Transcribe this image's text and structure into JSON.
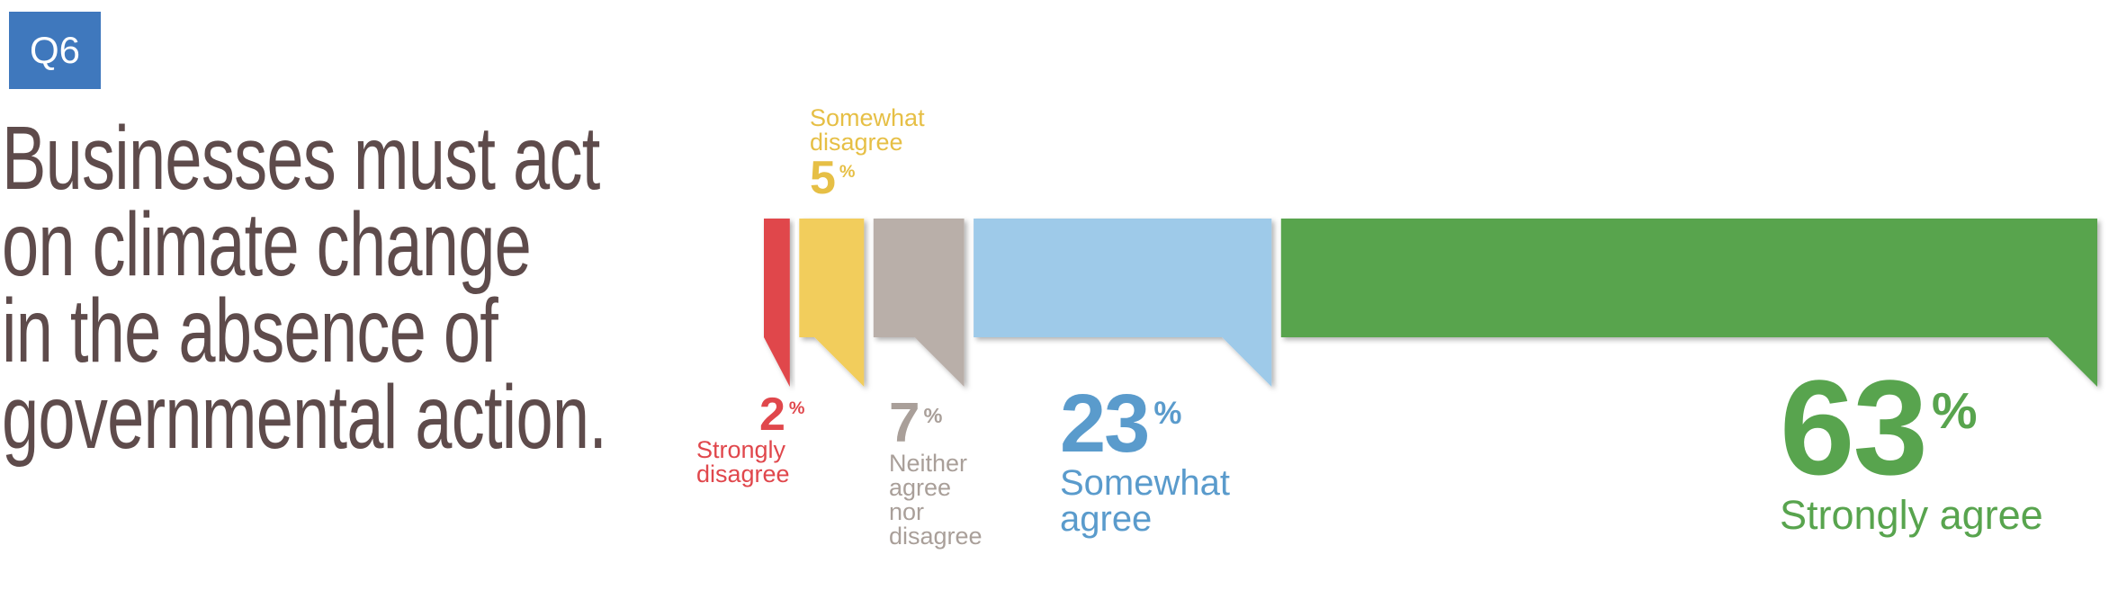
{
  "badge": "Q6",
  "chart_data": {
    "type": "bar",
    "title": [
      "Businesses must act",
      "on climate change",
      "in the absence of",
      "governmental action."
    ],
    "unit": "%",
    "categories": [
      "Strongly disagree",
      "Somewhat disagree",
      "Neither agree nor disagree",
      "Somewhat agree",
      "Strongly agree"
    ],
    "values": [
      2,
      5,
      7,
      23,
      63
    ],
    "colors": [
      "#e0474c",
      "#f2cd5c",
      "#b9afa9",
      "#9ecae9",
      "#58a44e"
    ],
    "label_colors": [
      "#e0474c",
      "#e6bf45",
      "#a99f99",
      "#5a9bcc",
      "#58a44e"
    ]
  }
}
